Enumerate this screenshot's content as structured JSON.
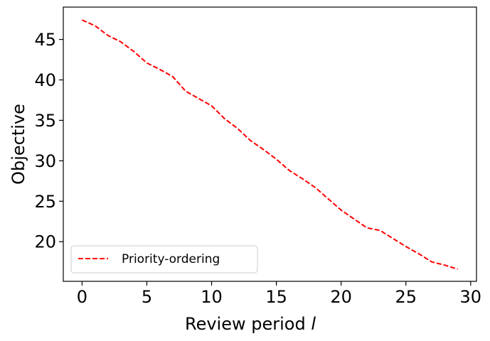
{
  "chart_data": {
    "type": "line",
    "title": "",
    "xlabel": "Review period l",
    "ylabel": "Objective",
    "xlim": [
      -1.45,
      30.45
    ],
    "ylim": [
      15.1,
      49.0
    ],
    "xticks": [
      0,
      5,
      10,
      15,
      20,
      25,
      30
    ],
    "yticks": [
      20,
      25,
      30,
      35,
      40,
      45
    ],
    "grid": false,
    "legend_position": "lower-left",
    "series": [
      {
        "name": "Priority-ordering",
        "color": "#ff0000",
        "line_style": "dashed",
        "x": [
          0,
          1,
          2,
          3,
          4,
          5,
          6,
          7,
          8,
          9,
          10,
          11,
          12,
          13,
          14,
          15,
          16,
          17,
          18,
          19,
          20,
          21,
          22,
          23,
          24,
          25,
          26,
          27,
          28,
          29
        ],
        "y": [
          47.4,
          46.7,
          45.5,
          44.7,
          43.5,
          42.1,
          41.3,
          40.4,
          38.6,
          37.7,
          36.8,
          35.2,
          34.0,
          32.5,
          31.4,
          30.2,
          28.8,
          27.8,
          26.7,
          25.3,
          23.9,
          22.8,
          21.7,
          21.4,
          20.4,
          19.4,
          18.5,
          17.5,
          17.1,
          16.6
        ]
      }
    ]
  }
}
